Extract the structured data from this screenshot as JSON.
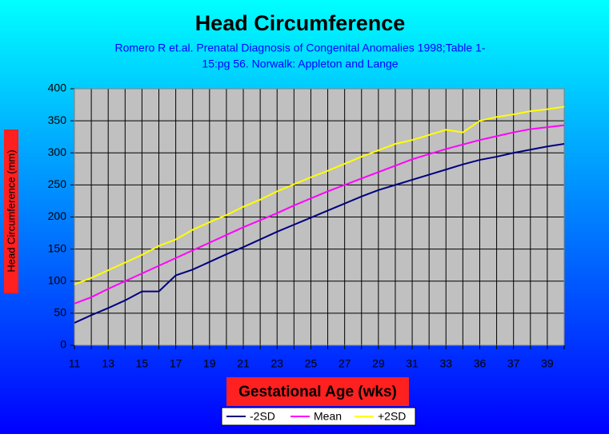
{
  "chart_data": {
    "type": "line",
    "title": "Head Circumference",
    "subtitle": [
      "Romero R et.al. Prenatal Diagnosis of Congenital Anomalies 1998;Table 1-",
      "15:pg 56. Norwalk: Appleton and Lange"
    ],
    "x_label": "Gestational Age (wks)",
    "y_label": "Head Circumference (mm)",
    "categories": [
      "11",
      null,
      "13",
      null,
      "15",
      null,
      "17",
      null,
      "19",
      null,
      "21",
      null,
      "23",
      null,
      "25",
      null,
      "27",
      null,
      "29",
      null,
      "31",
      null,
      "33",
      null,
      "36",
      null,
      "37",
      null,
      "39",
      null
    ],
    "series": [
      {
        "name": "-2SD",
        "color": "#000080",
        "values": [
          35,
          47,
          58,
          70,
          84,
          84,
          109,
          118,
          130,
          142,
          153,
          165,
          177,
          188,
          199,
          210,
          221,
          232,
          242,
          250,
          258,
          266,
          274,
          282,
          289,
          294,
          300,
          305,
          310,
          314
        ]
      },
      {
        "name": "Mean",
        "color": "#ff00ff",
        "values": [
          65,
          75,
          88,
          100,
          112,
          124,
          136,
          148,
          160,
          172,
          184,
          195,
          206,
          218,
          229,
          240,
          250,
          260,
          270,
          280,
          290,
          298,
          306,
          313,
          320,
          326,
          332,
          337,
          340,
          343
        ]
      },
      {
        "name": "+2SD",
        "color": "#ffff00",
        "values": [
          95,
          105,
          117,
          129,
          141,
          155,
          165,
          180,
          192,
          203,
          216,
          227,
          240,
          251,
          262,
          272,
          283,
          294,
          304,
          314,
          320,
          328,
          336,
          332,
          350,
          356,
          360,
          365,
          368,
          372
        ]
      }
    ],
    "ylim": [
      0,
      400
    ],
    "yticks": [
      0,
      50,
      100,
      150,
      200,
      250,
      300,
      350,
      400
    ],
    "grid": true,
    "legend": "bottom"
  }
}
